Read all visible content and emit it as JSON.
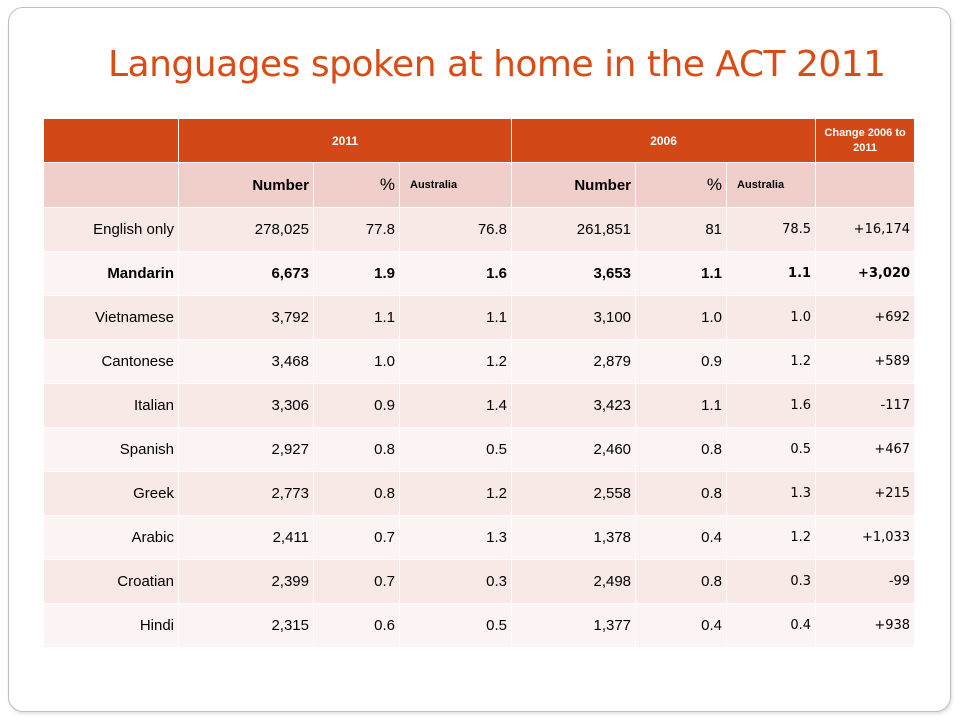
{
  "title": "Languages spoken at home in the ACT 2011",
  "header": {
    "blank": "",
    "year_2011": "2011",
    "year_2006": "2006",
    "change": "Change 2006 to 2011"
  },
  "subheader": {
    "blank": "",
    "number_2011": "Number",
    "pct_2011": "%",
    "australia_2011": "Australia",
    "number_2006": "Number",
    "pct_2006": "%",
    "australia_2006": "Australia",
    "change_blank": ""
  },
  "rows": [
    {
      "language": "English only",
      "num2011": "278,025",
      "pct2011": "77.8",
      "aus2011": "76.8",
      "num2006": "261,851",
      "pct2006": "81",
      "aus2006": "78.5",
      "change": "+16,174",
      "bold": false
    },
    {
      "language": "Mandarin",
      "num2011": "6,673",
      "pct2011": "1.9",
      "aus2011": "1.6",
      "num2006": "3,653",
      "pct2006": "1.1",
      "aus2006": "1.1",
      "change": "+3,020",
      "bold": true
    },
    {
      "language": "Vietnamese",
      "num2011": "3,792",
      "pct2011": "1.1",
      "aus2011": "1.1",
      "num2006": "3,100",
      "pct2006": "1.0",
      "aus2006": "1.0",
      "change": "+692",
      "bold": false
    },
    {
      "language": "Cantonese",
      "num2011": "3,468",
      "pct2011": "1.0",
      "aus2011": "1.2",
      "num2006": "2,879",
      "pct2006": "0.9",
      "aus2006": "1.2",
      "change": "+589",
      "bold": false
    },
    {
      "language": "Italian",
      "num2011": "3,306",
      "pct2011": "0.9",
      "aus2011": "1.4",
      "num2006": "3,423",
      "pct2006": "1.1",
      "aus2006": "1.6",
      "change": "-117",
      "bold": false
    },
    {
      "language": "Spanish",
      "num2011": "2,927",
      "pct2011": "0.8",
      "aus2011": "0.5",
      "num2006": "2,460",
      "pct2006": "0.8",
      "aus2006": "0.5",
      "change": "+467",
      "bold": false
    },
    {
      "language": "Greek",
      "num2011": "2,773",
      "pct2011": "0.8",
      "aus2011": "1.2",
      "num2006": "2,558",
      "pct2006": "0.8",
      "aus2006": "1.3",
      "change": "+215",
      "bold": false
    },
    {
      "language": "Arabic",
      "num2011": "2,411",
      "pct2011": "0.7",
      "aus2011": "1.3",
      "num2006": "1,378",
      "pct2006": "0.4",
      "aus2006": "1.2",
      "change": "+1,033",
      "bold": false
    },
    {
      "language": "Croatian",
      "num2011": "2,399",
      "pct2011": "0.7",
      "aus2011": "0.3",
      "num2006": "2,498",
      "pct2006": "0.8",
      "aus2006": "0.3",
      "change": "-99",
      "bold": false
    },
    {
      "language": "Hindi",
      "num2011": "2,315",
      "pct2011": "0.6",
      "aus2011": "0.5",
      "num2006": "1,377",
      "pct2006": "0.4",
      "aus2006": "0.4",
      "change": "+938",
      "bold": false
    }
  ],
  "colors": {
    "accent": "#d34817",
    "title": "#d94c16",
    "subheader_bg": "#f0cfcb",
    "row_odd_bg": "#f8e8e6",
    "row_even_bg": "#fcf4f3"
  }
}
